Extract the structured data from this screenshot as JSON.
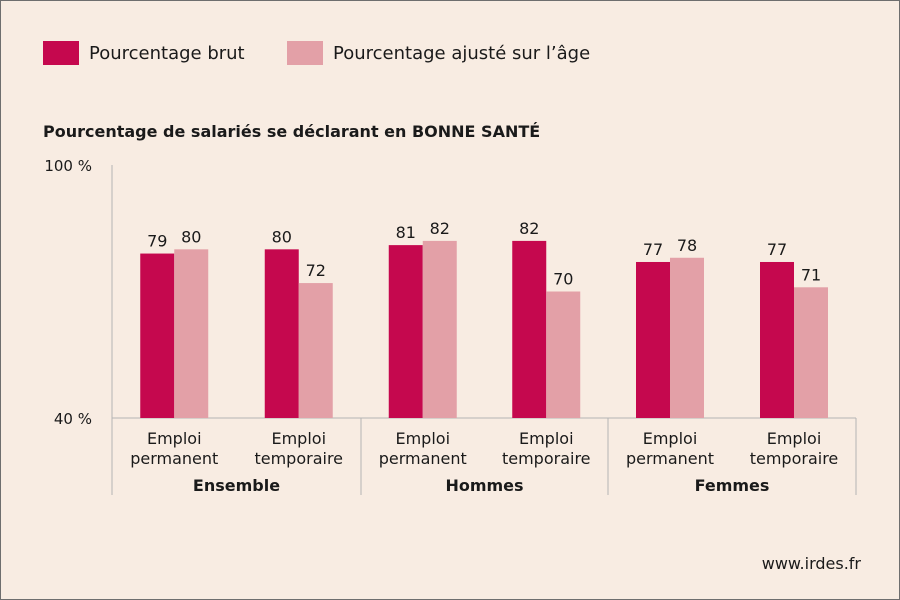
{
  "legend": [
    {
      "label": "Pourcentage brut",
      "color": "#c5084e"
    },
    {
      "label": "Pourcentage ajusté sur l’âge",
      "color": "#e3a0a7"
    }
  ],
  "source": "www.irdes.fr",
  "chart_data": {
    "type": "bar",
    "title": "Pourcentage de salariés se déclarant en BONNE SANTÉ",
    "y_tick_labels": [
      "100 %",
      "40 %"
    ],
    "ylim": [
      40,
      100
    ],
    "groups": [
      "Ensemble",
      "Hommes",
      "Femmes"
    ],
    "categories": [
      {
        "group": "Ensemble",
        "line1": "Emploi",
        "line2": "permanent"
      },
      {
        "group": "Ensemble",
        "line1": "Emploi",
        "line2": "temporaire"
      },
      {
        "group": "Hommes",
        "line1": "Emploi",
        "line2": "permanent"
      },
      {
        "group": "Hommes",
        "line1": "Emploi",
        "line2": "temporaire"
      },
      {
        "group": "Femmes",
        "line1": "Emploi",
        "line2": "permanent"
      },
      {
        "group": "Femmes",
        "line1": "Emploi",
        "line2": "temporaire"
      }
    ],
    "series": [
      {
        "name": "Pourcentage brut",
        "color": "#c5084e",
        "values": [
          79,
          80,
          81,
          82,
          77,
          77
        ]
      },
      {
        "name": "Pourcentage ajusté sur l’âge",
        "color": "#e3a0a7",
        "values": [
          80,
          72,
          82,
          70,
          78,
          71
        ]
      }
    ]
  }
}
